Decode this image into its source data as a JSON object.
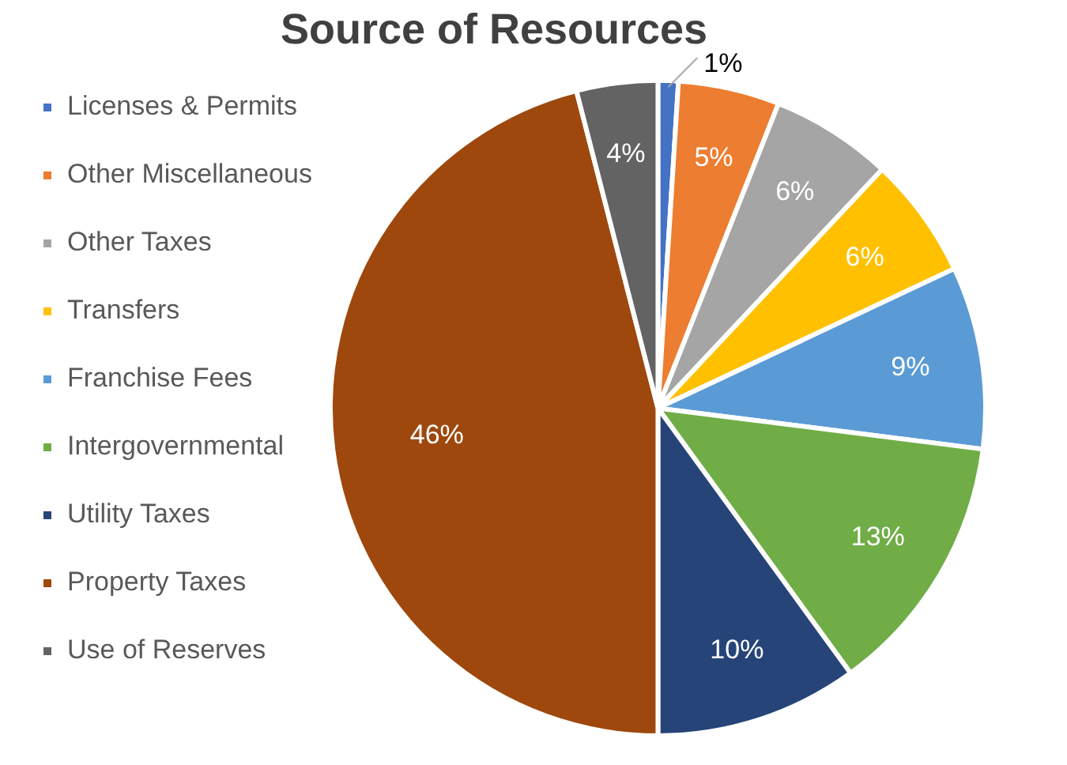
{
  "chart_data": {
    "type": "pie",
    "title": "Source of Resources",
    "categories": [
      "Licenses & Permits",
      "Other Miscellaneous",
      "Other Taxes",
      "Transfers",
      "Franchise Fees",
      "Intergovernmental",
      "Utility Taxes",
      "Property Taxes",
      "Use of Reserves"
    ],
    "values": [
      1,
      5,
      6,
      6,
      9,
      13,
      10,
      46,
      4
    ],
    "value_labels": [
      "1%",
      "5%",
      "6%",
      "6%",
      "9%",
      "13%",
      "10%",
      "46%",
      "4%"
    ],
    "colors": [
      "#4472c4",
      "#ed7d31",
      "#a5a5a5",
      "#ffc000",
      "#5b9bd5",
      "#70ad47",
      "#264478",
      "#9e480e",
      "#636363"
    ],
    "legend": "left"
  }
}
